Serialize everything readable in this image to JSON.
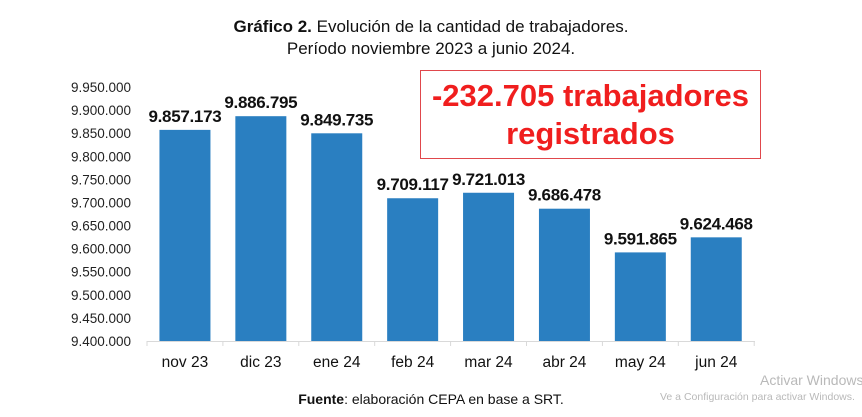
{
  "title": {
    "bold": "Gráfico 2.",
    "text": " Evolución de la cantidad de trabajadores.",
    "subtitle": "Período noviembre 2023 a junio 2024."
  },
  "callout": {
    "line1": "-232.705 trabajadores",
    "line2": "registrados",
    "color": "#f01e1e"
  },
  "source": {
    "bold": "Fuente",
    "text": ": elaboración CEPA en base a SRT."
  },
  "watermark": {
    "line1": "Activar Windows",
    "line2": "Ve a Configuración para activar Windows."
  },
  "chart_data": {
    "type": "bar",
    "categories": [
      "nov 23",
      "dic 23",
      "ene 24",
      "feb 24",
      "mar 24",
      "abr 24",
      "may 24",
      "jun 24"
    ],
    "values": [
      9857173,
      9886795,
      9849735,
      9709117,
      9721013,
      9686478,
      9591865,
      9624468
    ],
    "data_labels": [
      "9.857.173",
      "9.886.795",
      "9.849.735",
      "9.709.117",
      "9.721.013",
      "9.686.478",
      "9.591.865",
      "9.624.468"
    ],
    "ylim": [
      9400000,
      9950000
    ],
    "yticks": [
      "9.400.000",
      "9.450.000",
      "9.500.000",
      "9.550.000",
      "9.600.000",
      "9.650.000",
      "9.700.000",
      "9.750.000",
      "9.800.000",
      "9.850.000",
      "9.900.000",
      "9.950.000"
    ],
    "bar_color": "#2a7fc1",
    "grid": false
  }
}
